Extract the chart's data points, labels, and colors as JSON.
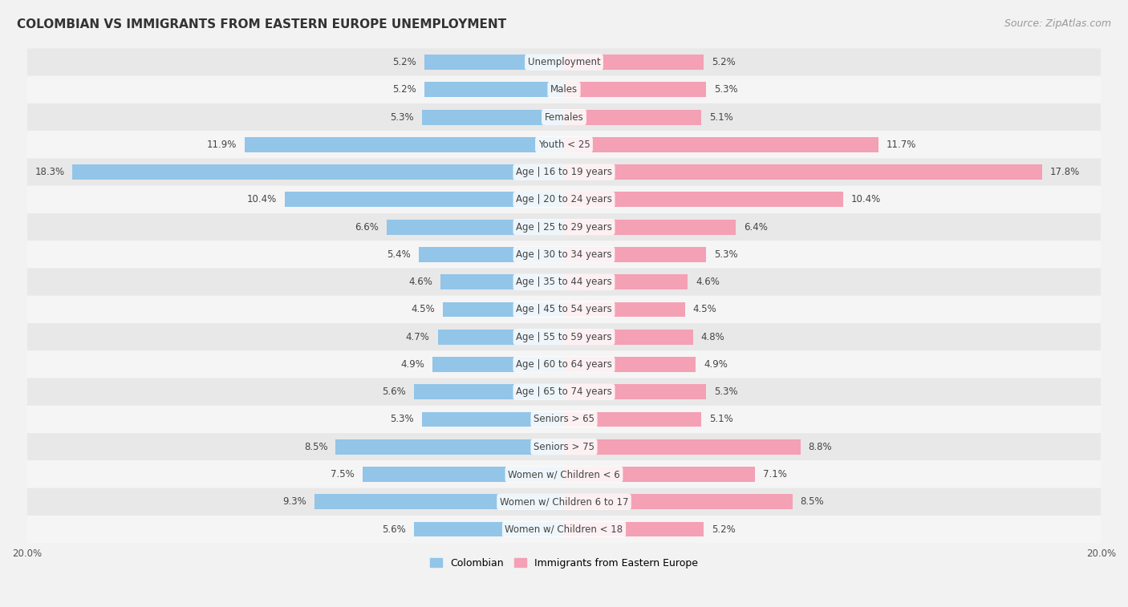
{
  "title": "COLOMBIAN VS IMMIGRANTS FROM EASTERN EUROPE UNEMPLOYMENT",
  "source": "Source: ZipAtlas.com",
  "categories": [
    "Unemployment",
    "Males",
    "Females",
    "Youth < 25",
    "Age | 16 to 19 years",
    "Age | 20 to 24 years",
    "Age | 25 to 29 years",
    "Age | 30 to 34 years",
    "Age | 35 to 44 years",
    "Age | 45 to 54 years",
    "Age | 55 to 59 years",
    "Age | 60 to 64 years",
    "Age | 65 to 74 years",
    "Seniors > 65",
    "Seniors > 75",
    "Women w/ Children < 6",
    "Women w/ Children 6 to 17",
    "Women w/ Children < 18"
  ],
  "colombian": [
    5.2,
    5.2,
    5.3,
    11.9,
    18.3,
    10.4,
    6.6,
    5.4,
    4.6,
    4.5,
    4.7,
    4.9,
    5.6,
    5.3,
    8.5,
    7.5,
    9.3,
    5.6
  ],
  "eastern_europe": [
    5.2,
    5.3,
    5.1,
    11.7,
    17.8,
    10.4,
    6.4,
    5.3,
    4.6,
    4.5,
    4.8,
    4.9,
    5.3,
    5.1,
    8.8,
    7.1,
    8.5,
    5.2
  ],
  "colombian_color": "#92C5E8",
  "eastern_europe_color": "#F4A0B5",
  "background_color": "#f2f2f2",
  "row_color_odd": "#e8e8e8",
  "row_color_even": "#f5f5f5",
  "max_value": 20.0,
  "legend_label_colombian": "Colombian",
  "legend_label_eastern": "Immigrants from Eastern Europe",
  "label_fontsize": 8.5,
  "title_fontsize": 11,
  "source_fontsize": 9
}
